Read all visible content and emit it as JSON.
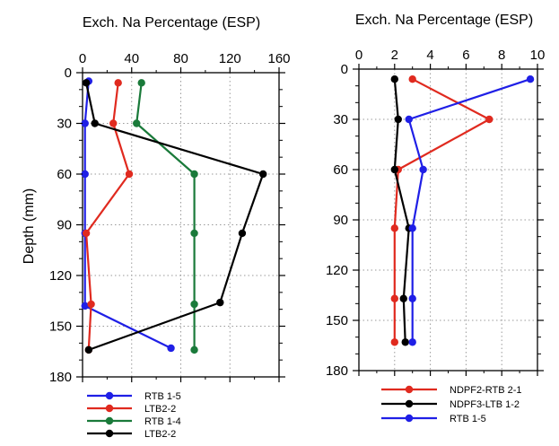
{
  "chart_data": [
    {
      "type": "line",
      "orientation": "depth-profile",
      "xlabel": "Exch. Na Percentage (ESP)",
      "ylabel": "Depth (mm)",
      "xlim": [
        0,
        160
      ],
      "ylim": [
        0,
        180
      ],
      "y_inverted": true,
      "xticks": [
        "0",
        "40",
        "80",
        "120",
        "160"
      ],
      "yticks": [
        "0",
        "30",
        "60",
        "90",
        "120",
        "150",
        "180"
      ],
      "grid": "dotted",
      "legend_position": "bottom",
      "series": [
        {
          "name": "RTB 1-5",
          "color": "#1f1fe6",
          "x": [
            5,
            2,
            2,
            2,
            2,
            72
          ],
          "y": [
            5,
            30,
            60,
            95,
            138,
            163
          ]
        },
        {
          "name": "LTB2-2",
          "color": "#e02a1f",
          "x": [
            29,
            25,
            38,
            3,
            7,
            5
          ],
          "y": [
            6,
            30,
            60,
            95,
            137,
            164
          ]
        },
        {
          "name": "RTB 1-4",
          "color": "#1a7a3a",
          "x": [
            48,
            44,
            91,
            91,
            91,
            91
          ],
          "y": [
            6,
            30,
            60,
            95,
            137,
            164
          ]
        },
        {
          "name": "LTB2-2",
          "color": "#000000",
          "x": [
            3,
            10,
            147,
            130,
            112,
            5
          ],
          "y": [
            6,
            30,
            60,
            95,
            136,
            164
          ]
        }
      ]
    },
    {
      "type": "line",
      "orientation": "depth-profile",
      "xlabel": "Exch. Na Percentage (ESP)",
      "ylabel": "",
      "xlim": [
        0,
        10
      ],
      "ylim": [
        0,
        180
      ],
      "y_inverted": true,
      "xticks": [
        "0",
        "2",
        "4",
        "6",
        "8",
        "10"
      ],
      "yticks": [
        "0",
        "30",
        "60",
        "90",
        "120",
        "150",
        "180"
      ],
      "grid": "dotted",
      "legend_position": "bottom",
      "series": [
        {
          "name": "NDPF2-RTB 2-1",
          "color": "#e02a1f",
          "x": [
            3.0,
            7.3,
            2.2,
            2.0,
            2.0,
            2.0
          ],
          "y": [
            6,
            30,
            60,
            95,
            137,
            163
          ]
        },
        {
          "name": "NDPF3-LTB 1-2",
          "color": "#000000",
          "x": [
            2.0,
            2.2,
            2.0,
            2.8,
            2.5,
            2.6
          ],
          "y": [
            6,
            30,
            60,
            95,
            137,
            163
          ]
        },
        {
          "name": "RTB 1-5",
          "color": "#1f1fe6",
          "x": [
            9.6,
            2.8,
            3.6,
            3.0,
            3.0,
            3.0
          ],
          "y": [
            6,
            30,
            60,
            95,
            137,
            163
          ]
        }
      ]
    }
  ]
}
